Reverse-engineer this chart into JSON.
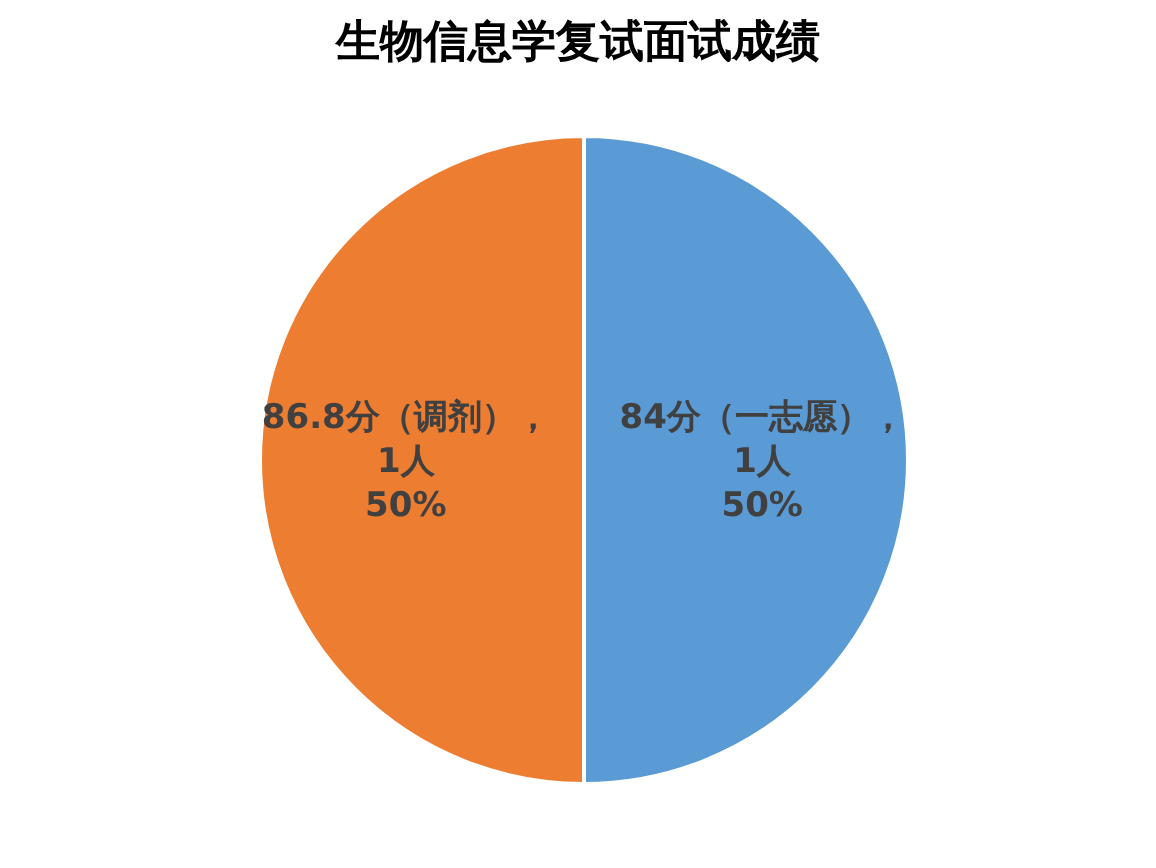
{
  "chart_data": {
    "type": "pie",
    "title": "生物信息学复试面试成绩",
    "categories": [
      "84分（一志愿）",
      "86.8分（调剂）"
    ],
    "values": [
      50,
      50
    ],
    "value_labels": [
      "，\n1人\n50%",
      "，\n1人\n50%"
    ],
    "colors": [
      "#5b9bd5",
      "#ed7d31"
    ],
    "legend": false
  }
}
